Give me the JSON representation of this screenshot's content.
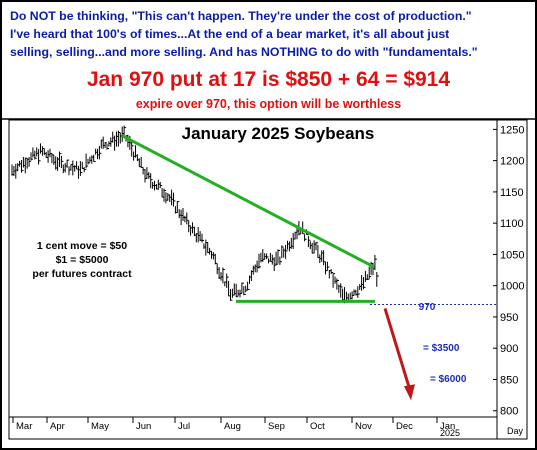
{
  "header": {
    "quote": "Do NOT be thinking, \"This can't happen. They're under the cost of production.\"\nI've heard that 100's of times...At the end of a bear market, it's all about just\nselling, selling...and more selling. And has NOTHING to do with \"fundamentals.\"",
    "headline": "Jan 970 put at 17 is $850 + 64 = $914",
    "subline": "expire over 970, this option will be worthless"
  },
  "colors": {
    "header_text": "#0a1ca8",
    "headline": "#e01010",
    "trendline": "#22b022",
    "projection_arrow": "#c01818",
    "price_bars": "#000000",
    "dotted_level": "#1c2cc0",
    "annotation_text": "#1c2cc0"
  },
  "chart_data": {
    "type": "ohlc",
    "title": "January 2025 Soybeans",
    "x_axis": {
      "months": [
        "Mar",
        "Apr",
        "May",
        "Jun",
        "Jul",
        "Aug",
        "Sep",
        "Oct",
        "Nov",
        "Dec",
        "Jan"
      ],
      "year_label": "2025",
      "unit_label": "Day"
    },
    "y_axis": {
      "ticks": [
        800,
        850,
        900,
        950,
        1000,
        1050,
        1100,
        1150,
        1200,
        1250
      ],
      "ylim": [
        790,
        1265
      ]
    },
    "price_path": {
      "description_points": [
        {
          "x": "Mar",
          "y": 1185
        },
        {
          "x": "Mar",
          "y": 1215
        },
        {
          "x": "Apr",
          "y": 1195
        },
        {
          "x": "Apr",
          "y": 1185
        },
        {
          "x": "May",
          "y": 1225
        },
        {
          "x": "May",
          "y": 1240
        },
        {
          "x": "Jun",
          "y": 1175
        },
        {
          "x": "Jun",
          "y": 1145
        },
        {
          "x": "Jul",
          "y": 1095
        },
        {
          "x": "Jul",
          "y": 1050
        },
        {
          "x": "Aug",
          "y": 985
        },
        {
          "x": "Aug",
          "y": 1000
        },
        {
          "x": "Aug",
          "y": 1045
        },
        {
          "x": "Sep",
          "y": 1040
        },
        {
          "x": "Sep",
          "y": 1095
        },
        {
          "x": "Oct",
          "y": 1045
        },
        {
          "x": "Oct",
          "y": 980
        },
        {
          "x": "Nov",
          "y": 1000
        },
        {
          "x": "Nov",
          "y": 1035
        },
        {
          "x": "Nov",
          "y": 990
        }
      ]
    },
    "trendlines": [
      {
        "name": "resistance",
        "from": {
          "x": "May",
          "y": 1240
        },
        "to": {
          "x": "Nov",
          "y": 1030
        }
      },
      {
        "name": "support",
        "from": {
          "x": "Aug",
          "y": 975
        },
        "to": {
          "x": "Nov",
          "y": 975
        }
      }
    ],
    "reference_level": {
      "value": 970,
      "label": "970"
    },
    "projection": {
      "from": {
        "x": "Nov",
        "y": 970
      },
      "to": {
        "x": "Dec",
        "y": 820
      }
    },
    "annotations": [
      {
        "text": "1 cent move = $50"
      },
      {
        "text": "$1 = $5000"
      },
      {
        "text": "per futures contract"
      },
      {
        "text": "= $3500"
      },
      {
        "text": "= $6000"
      }
    ]
  }
}
